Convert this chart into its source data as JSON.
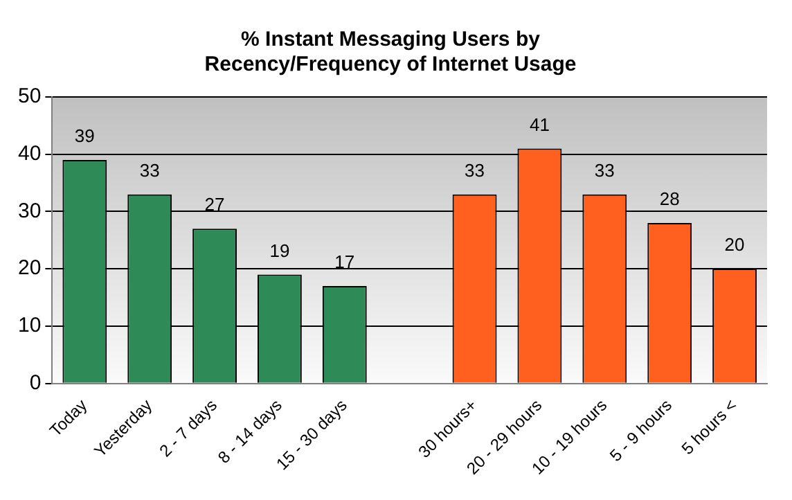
{
  "chart_data": {
    "type": "bar",
    "title": "% Instant Messaging Users by\nRecency/Frequency of Internet Usage",
    "categories": [
      "Today",
      "Yesterday",
      "2 - 7 days",
      "8 - 14 days",
      "15 - 30 days",
      null,
      "30 hours+",
      "20 - 29 hours",
      "10 - 19 hours",
      "5 - 9 hours",
      "5 hours <"
    ],
    "values": [
      39,
      33,
      27,
      19,
      17,
      null,
      33,
      41,
      33,
      28,
      20
    ],
    "colors": [
      "#2e8b57",
      "#2e8b57",
      "#2e8b57",
      "#2e8b57",
      "#2e8b57",
      "#2e8b57",
      "#ff6020",
      "#ff6020",
      "#ff6020",
      "#ff6020",
      "#ff6020"
    ],
    "ylim": [
      0,
      50
    ],
    "yticks": [
      0,
      10,
      20,
      30,
      40,
      50
    ],
    "grid": "y",
    "data_labels": true,
    "legend": false
  }
}
